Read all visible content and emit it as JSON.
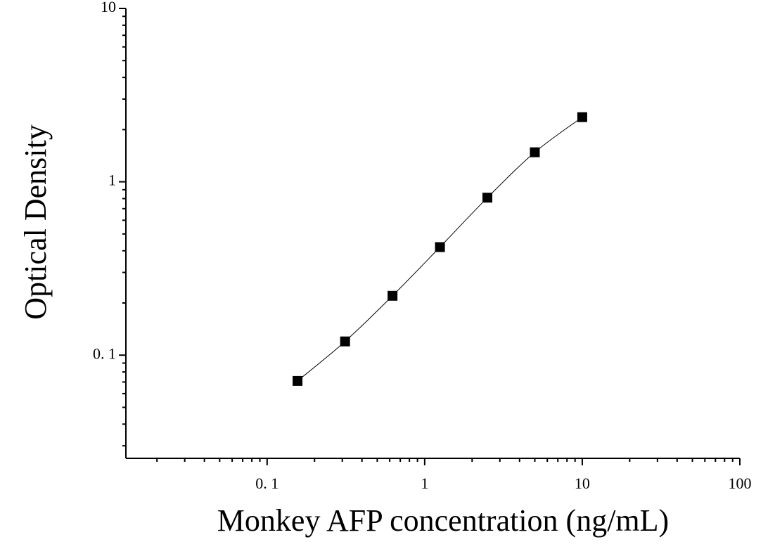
{
  "chart_data": {
    "type": "scatter",
    "x_label": "Monkey AFP concentration (ng/mL)",
    "y_label": "Optical Density",
    "x": [
      0.156,
      0.3125,
      0.625,
      1.25,
      2.5,
      5,
      10
    ],
    "series": [
      {
        "color": "#000000",
        "values": [
          0.071,
          0.12,
          0.22,
          0.42,
          0.81,
          1.48,
          2.36
        ]
      }
    ],
    "log_x": true,
    "log_y": true,
    "fit_curve": true,
    "xlim": [
      0.0127,
      100
    ],
    "xticks": [
      {
        "value": 0.1,
        "label": "0. 1"
      },
      1,
      10,
      100
    ],
    "ylim": [
      0.0254,
      10
    ],
    "yticks": [
      {
        "value": 0.1,
        "label": "0. 1"
      },
      1,
      10
    ]
  }
}
